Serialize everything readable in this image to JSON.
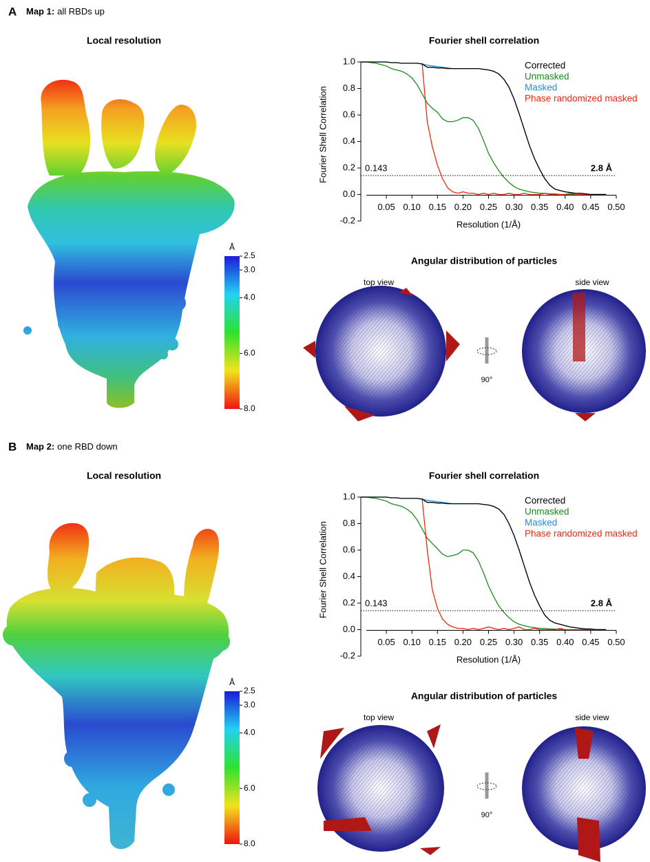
{
  "panels": [
    {
      "label": "A",
      "heading_bold": "Map 1:",
      "heading_rest": "all RBDs up",
      "local_resolution_title": "Local resolution",
      "colorbar": {
        "unit": "Å",
        "lim": [
          2.5,
          8
        ],
        "ticks": [
          2.5,
          {
            "value": 3,
            "label": "3.0"
          },
          {
            "value": 4,
            "label": "4.0"
          },
          {
            "value": 6,
            "label": "6.0"
          },
          {
            "value": 8,
            "label": "8.0"
          }
        ],
        "colors": [
          "#1b1bd8",
          "#22d2f0",
          "#2ee22e",
          "#f2e31c",
          "#ee1412"
        ]
      },
      "angular_title": "Angular distribution of particles",
      "top_view": "top view",
      "side_view": "side view",
      "rotation": "90°"
    },
    {
      "label": "B",
      "heading_bold": "Map 2:",
      "heading_rest": "one RBD down",
      "local_resolution_title": "Local resolution",
      "colorbar": {
        "unit": "Å",
        "lim": [
          2.5,
          8
        ],
        "ticks": [
          2.5,
          {
            "value": 3,
            "label": "3.0"
          },
          {
            "value": 4,
            "label": "4.0"
          },
          {
            "value": 6,
            "label": "6.0"
          },
          {
            "value": 8,
            "label": "8.0"
          }
        ],
        "colors": [
          "#1b1bd8",
          "#22d2f0",
          "#2ee22e",
          "#f2e31c",
          "#ee1412"
        ]
      },
      "angular_title": "Angular distribution of particles",
      "top_view": "top view",
      "side_view": "side view",
      "rotation": "90°"
    }
  ],
  "chart_data": [
    {
      "type": "line",
      "title": "Fourier shell correlation",
      "x_label": "Resolution (1/Å)",
      "y_label": "Fourier Shell Correlation",
      "x": [
        0,
        0.01,
        0.02,
        0.03,
        0.04,
        0.05,
        0.06,
        0.07,
        0.08,
        0.09,
        0.1,
        0.11,
        0.12,
        0.13,
        0.14,
        0.15,
        0.16,
        0.17,
        0.18,
        0.19,
        0.2,
        0.21,
        0.22,
        0.23,
        0.24,
        0.25,
        0.26,
        0.27,
        0.28,
        0.29,
        0.3,
        0.31,
        0.32,
        0.33,
        0.34,
        0.35,
        0.36,
        0.37,
        0.38,
        0.39,
        0.4,
        0.41,
        0.42,
        0.43,
        0.44,
        0.45,
        0.46,
        0.47,
        0.48
      ],
      "series": [
        {
          "name": "Corrected",
          "color": "#000000",
          "values": [
            1,
            1,
            1,
            1,
            1,
            1,
            0.995,
            0.995,
            0.99,
            0.99,
            0.99,
            0.99,
            0.985,
            0.96,
            0.96,
            0.955,
            0.955,
            0.95,
            0.95,
            0.95,
            0.95,
            0.95,
            0.95,
            0.95,
            0.945,
            0.94,
            0.93,
            0.91,
            0.87,
            0.81,
            0.72,
            0.61,
            0.49,
            0.37,
            0.27,
            0.19,
            0.12,
            0.07,
            0.04,
            0.03,
            0.02,
            0.015,
            0.01,
            0.01,
            0.005,
            0,
            0,
            0,
            0
          ]
        },
        {
          "name": "Unmasked",
          "color": "#1a8c1a",
          "values": [
            1,
            1,
            0.995,
            0.99,
            0.98,
            0.97,
            0.95,
            0.94,
            0.93,
            0.91,
            0.88,
            0.83,
            0.76,
            0.69,
            0.65,
            0.62,
            0.57,
            0.55,
            0.55,
            0.56,
            0.58,
            0.58,
            0.56,
            0.5,
            0.41,
            0.31,
            0.24,
            0.18,
            0.13,
            0.09,
            0.06,
            0.04,
            0.03,
            0.02,
            0.015,
            0.01,
            0.01,
            0.005,
            0.005,
            0,
            0,
            0,
            0,
            0,
            0,
            0,
            0,
            0,
            0
          ]
        },
        {
          "name": "Masked",
          "color": "#1e90e0",
          "values": [
            1,
            1,
            1,
            1,
            1,
            1,
            0.995,
            0.995,
            0.99,
            0.99,
            0.99,
            0.99,
            0.985,
            0.975,
            0.97,
            0.965,
            0.96,
            0.955,
            0.95,
            0.95,
            0.95,
            0.95,
            0.95,
            0.95,
            0.945,
            0.94,
            0.93,
            0.91,
            0.87,
            0.81,
            0.72,
            0.61,
            0.49,
            0.37,
            0.27,
            0.19,
            0.12,
            0.07,
            0.04,
            0.03,
            0.02,
            0.015,
            0.01,
            0.01,
            0.005,
            0,
            0,
            0,
            0
          ]
        },
        {
          "name": "Phase randomized masked",
          "color": "#f0280a",
          "values": [
            null,
            null,
            null,
            null,
            null,
            null,
            null,
            null,
            null,
            null,
            null,
            null,
            0.99,
            0.55,
            0.36,
            0.22,
            0.12,
            0.05,
            0.02,
            0.01,
            0.02,
            0.01,
            0.01,
            0,
            0.01,
            0,
            0.01,
            0,
            0,
            0.01,
            0,
            0,
            0.01,
            0,
            0,
            0,
            0.01,
            0,
            0,
            0,
            0,
            0.01,
            0,
            0,
            0,
            0,
            0,
            0,
            0
          ]
        }
      ],
      "xlim": [
        0,
        0.5
      ],
      "ylim": [
        -0.2,
        1.0
      ],
      "xticks": [
        0.05,
        {
          "value": 0.1,
          "label": "0.10"
        },
        0.15,
        {
          "value": 0.2,
          "label": "0.20"
        },
        0.25,
        {
          "value": 0.3,
          "label": "0.30"
        },
        0.35,
        {
          "value": 0.4,
          "label": "0.40"
        },
        0.45,
        {
          "value": 0.5,
          "label": "0.50"
        }
      ],
      "yticks": [
        -0.2,
        {
          "value": 0,
          "label": "0.0"
        },
        0.2,
        0.4,
        0.6,
        0.8,
        {
          "value": 1,
          "label": "1.0"
        }
      ],
      "threshold": 0.143,
      "resolution_label": "2.8 Å",
      "legend": "upper right",
      "grid": false
    },
    {
      "type": "line",
      "title": "Fourier shell correlation",
      "x_label": "Resolution (1/Å)",
      "y_label": "Fourier Shell Correlation",
      "x": [
        0,
        0.01,
        0.02,
        0.03,
        0.04,
        0.05,
        0.06,
        0.07,
        0.08,
        0.09,
        0.1,
        0.11,
        0.12,
        0.13,
        0.14,
        0.15,
        0.16,
        0.17,
        0.18,
        0.19,
        0.2,
        0.21,
        0.22,
        0.23,
        0.24,
        0.25,
        0.26,
        0.27,
        0.28,
        0.29,
        0.3,
        0.31,
        0.32,
        0.33,
        0.34,
        0.35,
        0.36,
        0.37,
        0.38,
        0.39,
        0.4,
        0.41,
        0.42,
        0.43,
        0.44,
        0.45,
        0.46,
        0.47,
        0.48
      ],
      "series": [
        {
          "name": "Corrected",
          "color": "#000000",
          "values": [
            1,
            1,
            1,
            1,
            1,
            1,
            0.995,
            0.995,
            0.99,
            0.99,
            0.99,
            0.99,
            0.985,
            0.96,
            0.96,
            0.955,
            0.955,
            0.95,
            0.95,
            0.95,
            0.95,
            0.95,
            0.95,
            0.95,
            0.945,
            0.94,
            0.93,
            0.91,
            0.87,
            0.8,
            0.71,
            0.6,
            0.48,
            0.36,
            0.26,
            0.18,
            0.11,
            0.07,
            0.05,
            0.04,
            0.03,
            0.02,
            0.015,
            0.01,
            0.005,
            0.005,
            0,
            0,
            0
          ]
        },
        {
          "name": "Unmasked",
          "color": "#1a8c1a",
          "values": [
            1,
            1,
            0.995,
            0.99,
            0.98,
            0.97,
            0.95,
            0.94,
            0.93,
            0.91,
            0.88,
            0.83,
            0.76,
            0.69,
            0.65,
            0.61,
            0.57,
            0.55,
            0.56,
            0.57,
            0.6,
            0.6,
            0.58,
            0.52,
            0.43,
            0.33,
            0.25,
            0.18,
            0.13,
            0.09,
            0.06,
            0.04,
            0.03,
            0.02,
            0.015,
            0.01,
            0.01,
            0.005,
            0.005,
            0,
            0,
            0,
            0,
            0,
            0,
            0,
            0,
            0,
            0
          ]
        },
        {
          "name": "Masked",
          "color": "#1e90e0",
          "values": [
            1,
            1,
            1,
            1,
            1,
            1,
            0.995,
            0.995,
            0.99,
            0.99,
            0.99,
            0.99,
            0.985,
            0.975,
            0.97,
            0.965,
            0.96,
            0.955,
            0.95,
            0.95,
            0.95,
            0.95,
            0.95,
            0.95,
            0.945,
            0.94,
            0.93,
            0.91,
            0.87,
            0.8,
            0.71,
            0.6,
            0.48,
            0.36,
            0.26,
            0.18,
            0.11,
            0.07,
            0.05,
            0.04,
            0.03,
            0.02,
            0.015,
            0.01,
            0.005,
            0.005,
            0,
            0,
            0
          ]
        },
        {
          "name": "Phase randomized masked",
          "color": "#f0280a",
          "values": [
            null,
            null,
            null,
            null,
            null,
            null,
            null,
            null,
            null,
            null,
            null,
            null,
            0.99,
            0.6,
            0.3,
            0.16,
            0.08,
            0.04,
            0.02,
            0.01,
            0.01,
            0,
            0.01,
            0,
            0.01,
            0.02,
            0.01,
            0,
            0.01,
            0,
            0.01,
            0.02,
            0,
            0,
            0.01,
            0,
            0,
            0,
            0,
            0.01,
            0,
            0,
            0,
            0,
            0,
            0,
            0,
            0,
            0
          ]
        }
      ],
      "xlim": [
        0,
        0.5
      ],
      "ylim": [
        -0.2,
        1.0
      ],
      "xticks": [
        0.05,
        {
          "value": 0.1,
          "label": "0.10"
        },
        0.15,
        {
          "value": 0.2,
          "label": "0.20"
        },
        0.25,
        {
          "value": 0.3,
          "label": "0.30"
        },
        0.35,
        {
          "value": 0.4,
          "label": "0.40"
        },
        0.45,
        {
          "value": 0.5,
          "label": "0.50"
        }
      ],
      "yticks": [
        -0.2,
        {
          "value": 0,
          "label": "0.0"
        },
        0.2,
        0.4,
        0.6,
        0.8,
        {
          "value": 1,
          "label": "1.0"
        }
      ],
      "threshold": 0.143,
      "resolution_label": "2.8 Å",
      "legend": "upper right",
      "grid": false
    }
  ]
}
